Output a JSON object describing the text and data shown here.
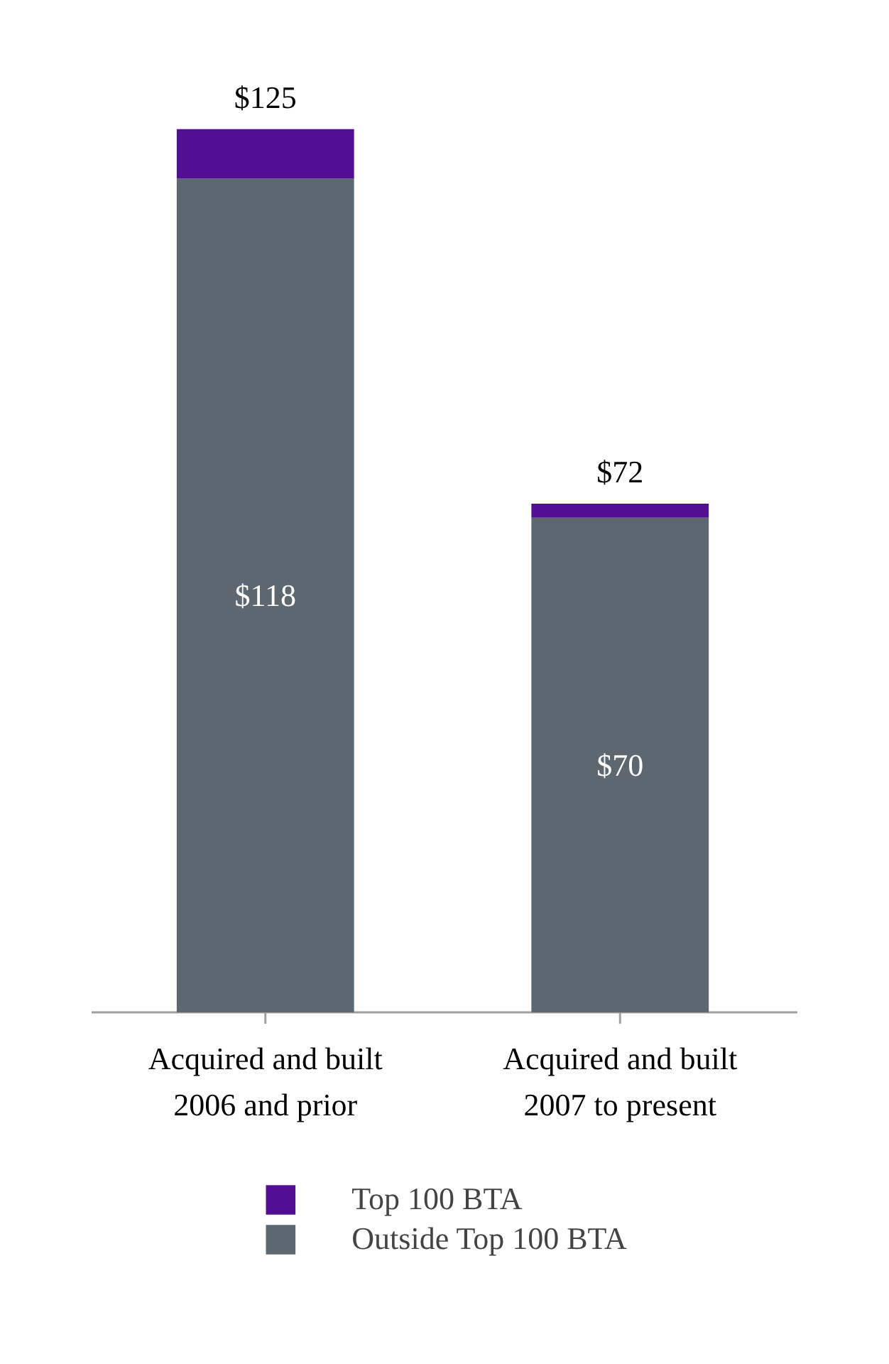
{
  "chart_data": {
    "type": "bar",
    "stacked": true,
    "categories": [
      "Acquired and built\n2006 and prior",
      "Acquired and built\n2007 to present"
    ],
    "series": [
      {
        "name": "Outside Top 100 BTA",
        "color": "#5c6770",
        "values": [
          118,
          70
        ],
        "value_labels": [
          "$118",
          "$70"
        ]
      },
      {
        "name": "Top 100 BTA",
        "color": "#520f94",
        "values": [
          7,
          2
        ]
      }
    ],
    "totals": [
      "$125",
      "$72"
    ],
    "legend": "bottom"
  }
}
